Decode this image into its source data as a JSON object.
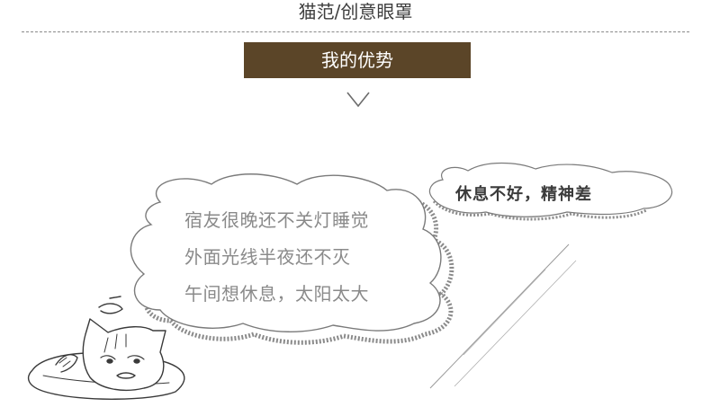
{
  "header": {
    "title": "猫范/创意眼罩"
  },
  "section": {
    "label": "我的优势"
  },
  "bubble_left": {
    "lines": [
      "宿友很晚还不关灯睡觉",
      "外面光线半夜还不灭",
      "午间想休息，太阳太大"
    ]
  },
  "bubble_right": {
    "text": "休息不好，精神差"
  },
  "colors": {
    "banner": "#5b4528",
    "bubble_text": "#8a8a8a",
    "divider": "#8a8a8a"
  },
  "icons": [
    "chevron-down-icon",
    "sleepy-cat-illustration",
    "cloud-bubble-left",
    "cloud-bubble-right"
  ]
}
